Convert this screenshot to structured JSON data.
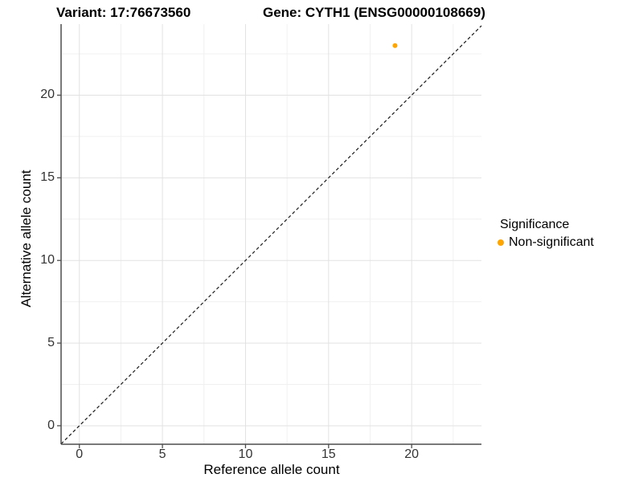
{
  "chart_data": {
    "type": "scatter",
    "title_left": "Variant: 17:76673560",
    "title_right": "Gene: CYTH1 (ENSG00000108669)",
    "xlabel": "Reference allele count",
    "ylabel": "Alternative allele count",
    "xlim": [
      -1.1,
      24.2
    ],
    "ylim": [
      -1.12,
      24.3
    ],
    "x_major_ticks": [
      0,
      5,
      10,
      15,
      20
    ],
    "y_major_ticks": [
      0,
      5,
      10,
      15,
      20
    ],
    "x_minor_ticks": [
      2.5,
      7.5,
      12.5,
      17.5,
      22.5
    ],
    "y_minor_ticks": [
      2.5,
      7.5,
      12.5,
      17.5,
      22.5
    ],
    "grid": true,
    "identity_line": {
      "equation": "y = x",
      "style": "dashed",
      "color": "#1a1a1a"
    },
    "points": [
      {
        "x": 19,
        "y": 23,
        "series": "Non-significant",
        "color": "#FFA500"
      }
    ],
    "legend": {
      "title": "Significance",
      "position": "right",
      "items": [
        {
          "label": "Non-significant",
          "color": "#FFA500"
        }
      ]
    }
  },
  "colors": {
    "background": "#FFFFFF",
    "grid_major": "#E2E2E2",
    "grid_minor": "#F0F0F0",
    "axis_line": "#4D4D4D",
    "tick_text": "#333333",
    "point": "#FFA500"
  }
}
